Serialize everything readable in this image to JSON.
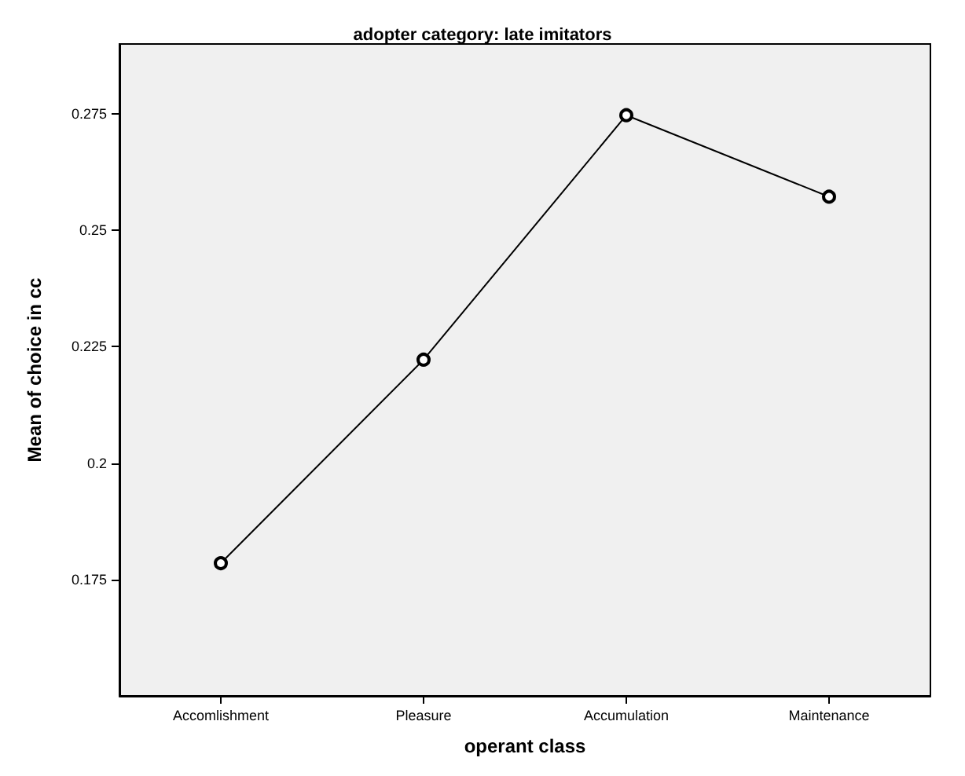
{
  "chart_data": {
    "type": "line",
    "title": "adopter category: late imitators",
    "xlabel": "operant class",
    "ylabel": "Mean of choice in cc",
    "categories": [
      "Accomlishment",
      "Pleasure",
      "Accumulation",
      "Maintenance"
    ],
    "series": [
      {
        "color": "#000000",
        "values": [
          0.1785,
          0.2222,
          0.2747,
          0.2572
        ]
      }
    ],
    "ylim": [
      0.15,
      0.29
    ],
    "yticks": [
      0.175,
      0.2,
      0.225,
      0.25,
      0.275
    ],
    "grid": false,
    "marker": "circle",
    "line_style": "solid"
  }
}
